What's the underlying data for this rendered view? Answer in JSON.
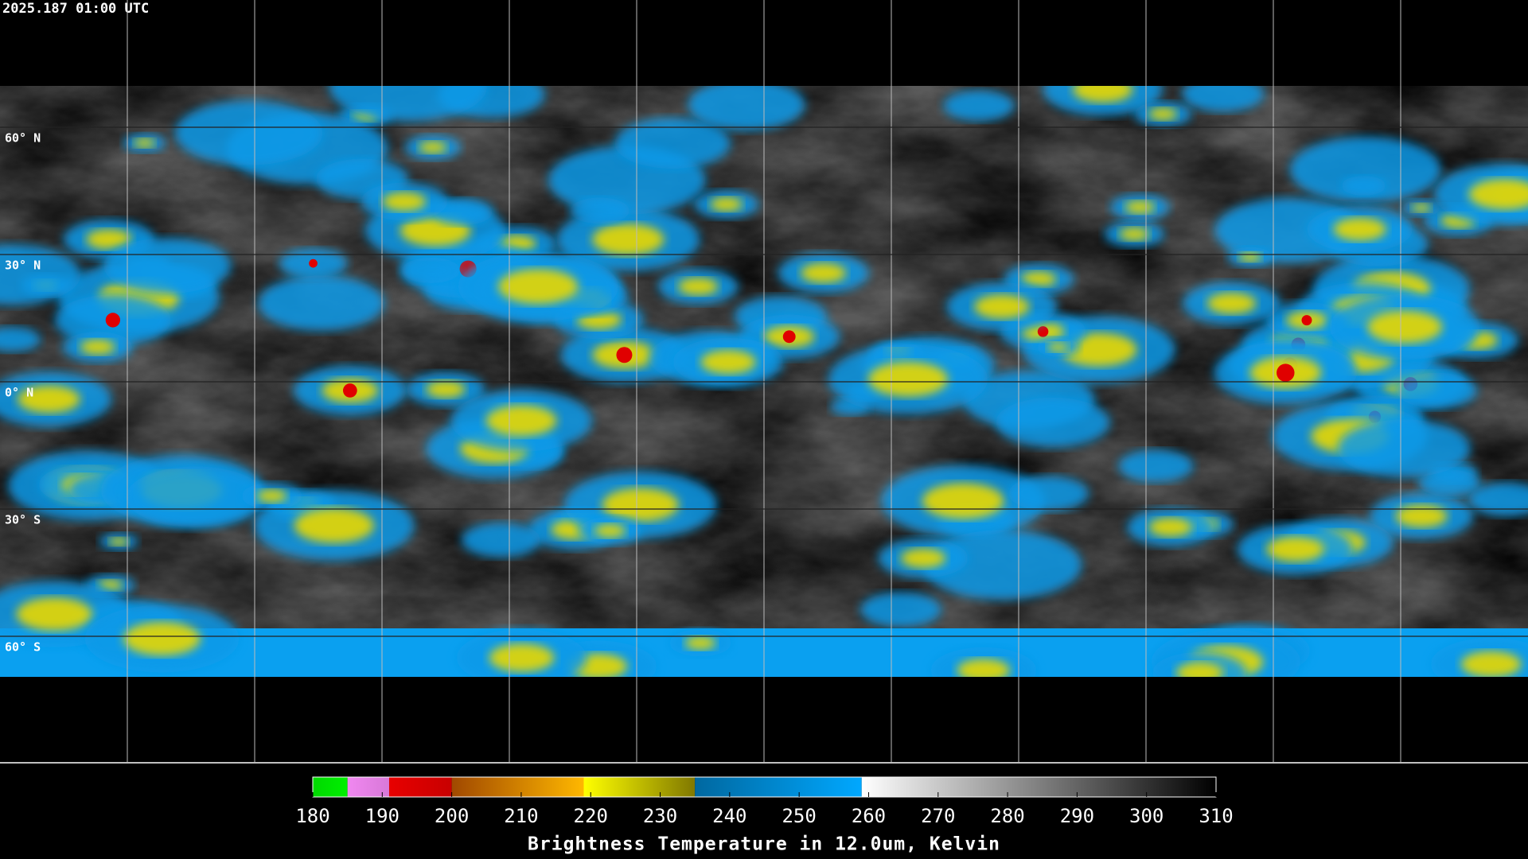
{
  "header": {
    "timestamp": "2025.187 01:00 UTC"
  },
  "map": {
    "lat_labels": [
      {
        "value": 60,
        "label": "60° N"
      },
      {
        "value": 30,
        "label": "30° N"
      },
      {
        "value": 0,
        "label": "0° N"
      },
      {
        "value": -30,
        "label": "30° S"
      },
      {
        "value": -60,
        "label": "60° S"
      }
    ]
  },
  "colorbar": {
    "title": "Brightness Temperature in 12.0um, Kelvin",
    "range": [
      180,
      310
    ],
    "ticks": [
      180,
      190,
      200,
      210,
      220,
      230,
      240,
      250,
      260,
      270,
      280,
      290,
      300,
      310
    ],
    "segments": [
      {
        "from": 180,
        "to": 185,
        "colors": [
          "#00d800",
          "#00f000"
        ]
      },
      {
        "from": 185,
        "to": 191,
        "colors": [
          "#f088f0",
          "#d878d8"
        ]
      },
      {
        "from": 191,
        "to": 200,
        "colors": [
          "#e80000",
          "#c80000"
        ]
      },
      {
        "from": 200,
        "to": 219,
        "colors": [
          "#a04800",
          "#ffb800"
        ]
      },
      {
        "from": 219,
        "to": 235,
        "colors": [
          "#ffff00",
          "#807800"
        ]
      },
      {
        "from": 235,
        "to": 259,
        "colors": [
          "#0068a0",
          "#00a8ff"
        ]
      },
      {
        "from": 259,
        "to": 310,
        "colors": [
          "#ffffff",
          "#000000"
        ]
      }
    ]
  }
}
